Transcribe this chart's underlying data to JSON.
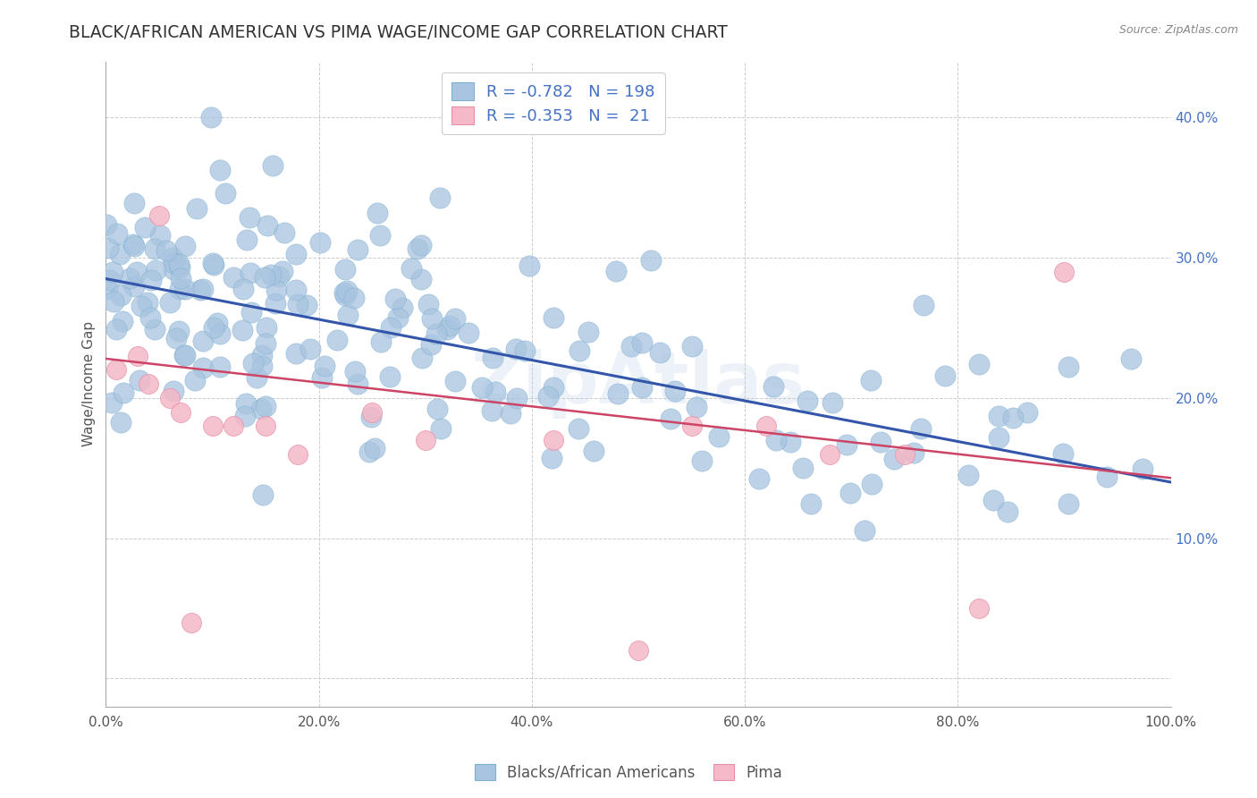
{
  "title": "BLACK/AFRICAN AMERICAN VS PIMA WAGE/INCOME GAP CORRELATION CHART",
  "source": "Source: ZipAtlas.com",
  "ylabel": "Wage/Income Gap",
  "xlim": [
    0.0,
    1.0
  ],
  "ylim": [
    -0.02,
    0.44
  ],
  "xticks": [
    0.0,
    0.2,
    0.4,
    0.6,
    0.8,
    1.0
  ],
  "xticklabels": [
    "0.0%",
    "20.0%",
    "40.0%",
    "60.0%",
    "80.0%",
    "100.0%"
  ],
  "yticks": [
    0.0,
    0.1,
    0.2,
    0.3,
    0.4
  ],
  "yticklabels": [
    "",
    "10.0%",
    "20.0%",
    "30.0%",
    "40.0%"
  ],
  "blue_color": "#a8c4e0",
  "blue_edge_color": "#7aafd0",
  "pink_color": "#f4b8c8",
  "pink_edge_color": "#e890a8",
  "blue_line_color": "#3355aa",
  "pink_line_color": "#cc4466",
  "legend_text_color": "#4472c4",
  "legend_label1": "Blacks/African Americans",
  "legend_label2": "Pima",
  "watermark": "ZipAtlas",
  "blue_intercept": 0.285,
  "blue_slope": -0.145,
  "pink_intercept": 0.228,
  "pink_slope": -0.085,
  "background_color": "#ffffff",
  "grid_color": "#cccccc",
  "title_fontsize": 13.5,
  "axis_fontsize": 11,
  "tick_fontsize": 11
}
